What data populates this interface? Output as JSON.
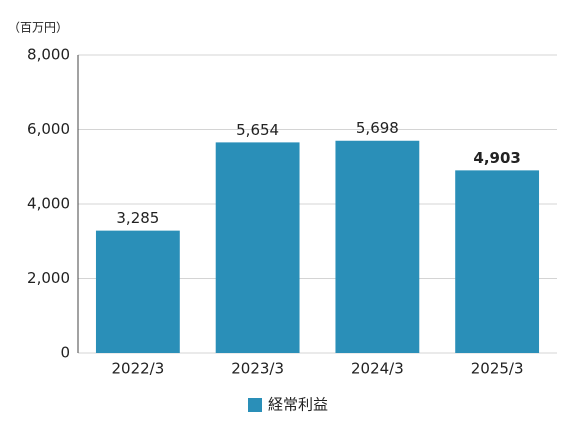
{
  "chart_data": {
    "type": "bar",
    "unit_label": "（百万円）",
    "categories": [
      "2022/3",
      "2023/3",
      "2024/3",
      "2025/3"
    ],
    "series": [
      {
        "name": "経常利益",
        "color": "#2a8fb8",
        "values": [
          3285,
          5654,
          5698,
          4903
        ],
        "value_labels": [
          "3,285",
          "5,654",
          "5,698",
          "4,903"
        ]
      }
    ],
    "ylim": [
      0,
      8000
    ],
    "yticks": [
      0,
      {
        "value": 2000,
        "label": "2,000"
      },
      {
        "value": 4000,
        "label": "4,000"
      },
      {
        "value": 6000,
        "label": "6,000"
      },
      {
        "value": 8000,
        "label": "8,000"
      }
    ],
    "grid": true,
    "legend": "bottom"
  }
}
